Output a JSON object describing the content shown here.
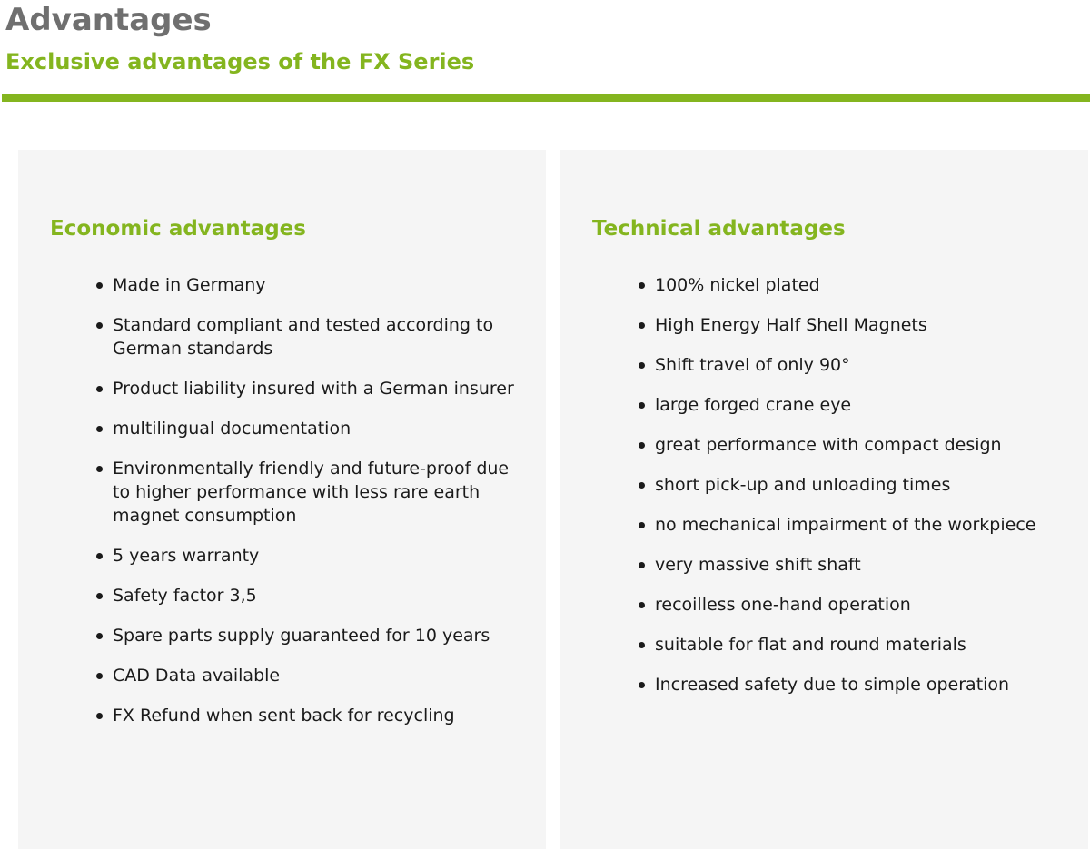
{
  "header": {
    "title": "Advantages",
    "subtitle": "Exclusive advantages of the FX Series"
  },
  "colors": {
    "accent": "#84b51f",
    "title": "#6f6f6f",
    "panel_bg": "#f5f5f5"
  },
  "economic": {
    "heading": "Economic advantages",
    "items": [
      "Made in Germany",
      "Standard compliant and tested according to German standards",
      "Product liability insured with a German insurer",
      "multilingual documentation",
      "Environmentally friendly and future-proof due to higher performance with less rare earth magnet consumption",
      "5 years warranty",
      "Safety factor 3,5",
      "Spare parts supply guaranteed for 10 years",
      "CAD Data available",
      "FX Refund when sent back for recycling"
    ]
  },
  "technical": {
    "heading": "Technical advantages",
    "items": [
      "100% nickel plated",
      "High Energy Half Shell Magnets",
      "Shift travel of only 90°",
      "large forged crane eye",
      "great performance with compact design",
      "short pick-up and unloading times",
      "no mechanical impairment of the workpiece",
      "very massive shift shaft",
      "recoilless one-hand operation",
      "suitable for flat and round materials",
      "Increased safety due to simple operation"
    ]
  }
}
